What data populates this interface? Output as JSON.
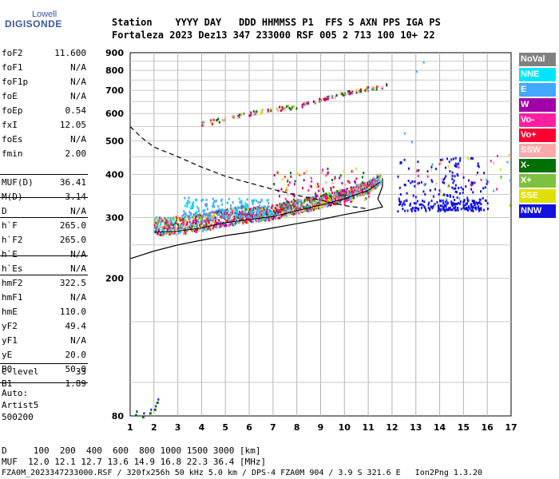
{
  "logo": {
    "line1": "Lowell",
    "line2": "DIGISONDE"
  },
  "header": {
    "row1": "Station    YYYY DAY   DDD HHMMSS P1  FFS S AXN PPS IGA PS",
    "row2": "Fortaleza 2023 Dez13 347 233000 RSF 005 2 713 100 10+ 22"
  },
  "params_group1": [
    {
      "name": "foF2",
      "value": "11.600"
    },
    {
      "name": "foF1",
      "value": "N/A"
    },
    {
      "name": "foF1p",
      "value": "N/A"
    },
    {
      "name": "foE",
      "value": "N/A"
    },
    {
      "name": "foEp",
      "value": "0.54"
    },
    {
      "name": "fxI",
      "value": "12.05"
    },
    {
      "name": "foEs",
      "value": "N/A"
    },
    {
      "name": "fmin",
      "value": "2.00"
    }
  ],
  "params_group2": [
    {
      "name": "MUF(D)",
      "value": "36.41"
    },
    {
      "name": "M(D)",
      "value": "3.14"
    },
    {
      "name": "D",
      "value": "N/A"
    }
  ],
  "params_group3": [
    {
      "name": "h`F",
      "value": "265.0"
    },
    {
      "name": "h`F2",
      "value": "265.0"
    },
    {
      "name": "h`E",
      "value": "N/A"
    },
    {
      "name": "h`Es",
      "value": "N/A"
    }
  ],
  "params_group4": [
    {
      "name": "hmF2",
      "value": "322.5"
    },
    {
      "name": "hmF1",
      "value": "N/A"
    },
    {
      "name": "hmE",
      "value": "110.0"
    },
    {
      "name": "yF2",
      "value": "49.4"
    },
    {
      "name": "yF1",
      "value": "N/A"
    },
    {
      "name": "yE",
      "value": "20.0"
    },
    {
      "name": "B0",
      "value": "50.0"
    },
    {
      "name": "B1",
      "value": "1.89"
    }
  ],
  "params_group5": [
    {
      "name": "C-level",
      "value": "33"
    }
  ],
  "autoscaling": {
    "label": "Auto:",
    "program": "Artist5",
    "version": "500200"
  },
  "legend": [
    {
      "label": "NoVal",
      "color": "#808080"
    },
    {
      "label": "NNE",
      "color": "#00e5ff"
    },
    {
      "label": "E",
      "color": "#40a8ff"
    },
    {
      "label": "W",
      "color": "#a000a8"
    },
    {
      "label": "Vo-",
      "color": "#ff20a0"
    },
    {
      "label": "Vo+",
      "color": "#ff0030"
    },
    {
      "label": "SSW",
      "color": "#ffa8a8"
    },
    {
      "label": "X-",
      "color": "#007000"
    },
    {
      "label": "X+",
      "color": "#80c040"
    },
    {
      "label": "SSE",
      "color": "#e0e000"
    },
    {
      "label": "NNW",
      "color": "#1010e0"
    }
  ],
  "footer": {
    "line1": "D     100  200  400  600  800 1000 1500 3000 [km]",
    "line2": "MUF  12.0 12.1 12.7 13.6 14.9 16.8 22.3 36.4 [MHz]",
    "line3": "FZA0M_2023347233000.RSF / 320fx256h 50 kHz 5.0 km / DPS-4 FZA0M 904 / 3.9 S 321.6 E   Ion2Png 1.3.20"
  },
  "chart_data": {
    "type": "scatter",
    "xlabel": "",
    "ylabel": "",
    "xlim": [
      1,
      17
    ],
    "ylim": [
      80,
      900
    ],
    "xticks": [
      1,
      2,
      3,
      4,
      5,
      6,
      7,
      8,
      9,
      10,
      11,
      12,
      13,
      14,
      15,
      16,
      17
    ],
    "yticks": [
      80,
      200,
      300,
      400,
      500,
      600,
      700,
      800,
      900
    ],
    "y_scale": "log",
    "grid": true,
    "legend_position": "right",
    "trace_main": [
      [
        2.0,
        272
      ],
      [
        3.0,
        274
      ],
      [
        4.0,
        280
      ],
      [
        5.0,
        290
      ],
      [
        6.0,
        296
      ],
      [
        7.0,
        302
      ],
      [
        8.0,
        314
      ],
      [
        9.0,
        326
      ],
      [
        10.0,
        340
      ],
      [
        11.0,
        360
      ],
      [
        11.5,
        380
      ]
    ],
    "trace_second_hop": [
      [
        4.0,
        560
      ],
      [
        5.0,
        580
      ],
      [
        6.0,
        600
      ],
      [
        7.0,
        618
      ],
      [
        8.0,
        630
      ],
      [
        9.0,
        660
      ],
      [
        10.0,
        690
      ],
      [
        11.0,
        710
      ],
      [
        11.8,
        725
      ]
    ],
    "profile_solid": [
      [
        1.0,
        228
      ],
      [
        2.0,
        240
      ],
      [
        3.0,
        250
      ],
      [
        4.0,
        258
      ],
      [
        5.0,
        266
      ],
      [
        6.0,
        272
      ],
      [
        7.0,
        280
      ],
      [
        8.0,
        288
      ],
      [
        9.0,
        296
      ],
      [
        10.0,
        306
      ],
      [
        11.0,
        315
      ],
      [
        11.6,
        322
      ],
      [
        11.4,
        340
      ],
      [
        11.6,
        370
      ],
      [
        11.6,
        390
      ]
    ],
    "muf_dashed": [
      [
        1.0,
        550
      ],
      [
        1.5,
        510
      ],
      [
        2.0,
        480
      ],
      [
        3.0,
        450
      ],
      [
        4.0,
        420
      ],
      [
        5.0,
        395
      ],
      [
        6.0,
        378
      ],
      [
        7.0,
        362
      ],
      [
        8.0,
        348
      ],
      [
        9.0,
        337
      ],
      [
        10.0,
        325
      ],
      [
        11.0,
        318
      ]
    ],
    "low_echoes": [
      [
        1.2,
        81
      ],
      [
        1.5,
        80
      ],
      [
        1.8,
        82
      ],
      [
        2.0,
        84
      ],
      [
        2.1,
        88
      ]
    ],
    "nnw_cluster": [
      [
        12.5,
        330
      ],
      [
        13.0,
        330
      ],
      [
        13.5,
        325
      ],
      [
        14.0,
        330
      ],
      [
        14.5,
        330
      ],
      [
        15.0,
        330
      ],
      [
        15.5,
        335
      ],
      [
        13.2,
        430
      ],
      [
        13.5,
        420
      ],
      [
        14.5,
        430
      ],
      [
        15.0,
        420
      ],
      [
        14.3,
        380
      ],
      [
        15.3,
        390
      ]
    ],
    "outliers": [
      [
        13.0,
        800
      ],
      [
        13.3,
        850
      ],
      [
        12.8,
        500
      ],
      [
        12.5,
        530
      ]
    ]
  }
}
